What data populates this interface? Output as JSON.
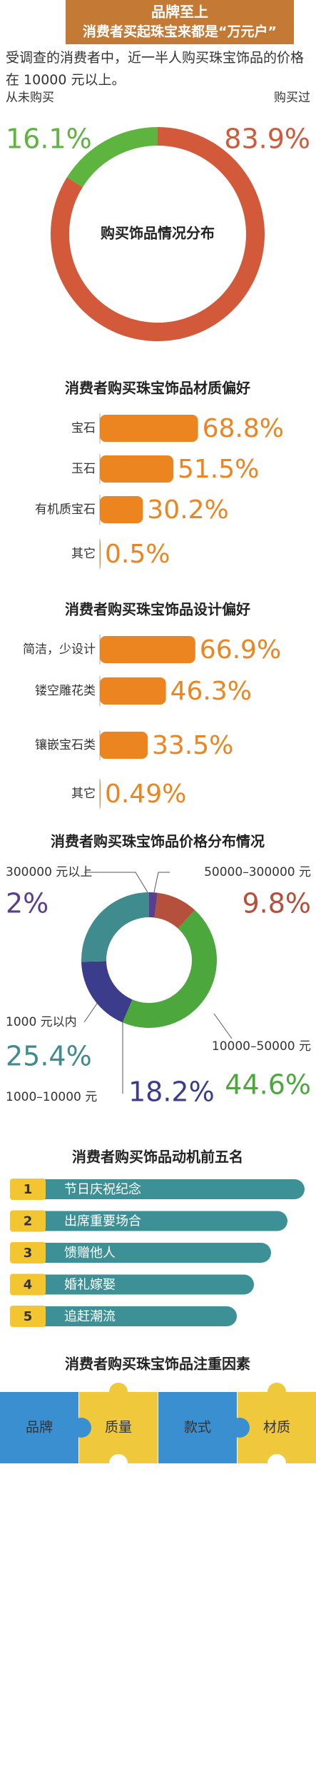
{
  "header": {
    "title": "品牌至上",
    "subtitle": "消费者买起珠宝来都是“万元户”",
    "intro": "受调查的消费者中，近一半人购买珠宝饰品的价格在 10000 元以上。"
  },
  "chart_data": [
    {
      "type": "donut",
      "title": "购买饰品情况分布",
      "categories": [
        "从未购买",
        "购买过"
      ],
      "values": [
        16.1,
        83.9
      ],
      "value_labels": [
        "16.1%",
        "83.9%"
      ],
      "colors": [
        "#5db53f",
        "#d2593a"
      ]
    },
    {
      "type": "bar",
      "title": "消费者购买珠宝饰品材质偏好",
      "categories": [
        "宝石",
        "玉石",
        "有机质宝石",
        "其它"
      ],
      "values": [
        68.8,
        51.5,
        30.2,
        0.5
      ],
      "value_labels": [
        "68.8%",
        "51.5%",
        "30.2%",
        "0.5%"
      ],
      "color": "#ec8520"
    },
    {
      "type": "bar",
      "title": "消费者购买珠宝饰品设计偏好",
      "categories": [
        "简洁，少设计",
        "镂空雕花类",
        "镶嵌宝石类",
        "其它"
      ],
      "values": [
        66.9,
        46.3,
        33.5,
        0.49
      ],
      "value_labels": [
        "66.9%",
        "46.3%",
        "33.5%",
        "0.49%"
      ],
      "color": "#ec8520"
    },
    {
      "type": "donut",
      "title": "消费者购买珠宝饰品价格分布情况",
      "categories": [
        "300000 元以上",
        "50000–300000 元",
        "10000–50000 元",
        "1000–10000 元",
        "1000 元以内"
      ],
      "values": [
        2,
        9.8,
        44.6,
        18.2,
        25.4
      ],
      "value_labels": [
        "2%",
        "9.8%",
        "44.6%",
        "18.2%",
        "25.4%"
      ],
      "colors": [
        "#5b3f8c",
        "#b4503c",
        "#4ca83c",
        "#3b3d8c",
        "#3f8b8e"
      ]
    }
  ],
  "motives": {
    "title": "消费者购买饰品动机前五名",
    "items": [
      {
        "rank": "1",
        "label": "节日庆祝纪念"
      },
      {
        "rank": "2",
        "label": "出席重要场合"
      },
      {
        "rank": "3",
        "label": "馈赠他人"
      },
      {
        "rank": "4",
        "label": "婚礼嫁娶"
      },
      {
        "rank": "5",
        "label": "追赶潮流"
      }
    ]
  },
  "factors": {
    "title": "消费者购买珠宝饰品注重因素",
    "items": [
      "品牌",
      "质量",
      "款式",
      "材质"
    ]
  }
}
